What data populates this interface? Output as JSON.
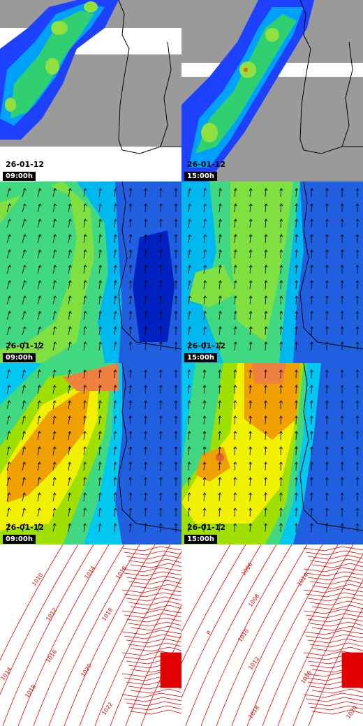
{
  "panels": [
    {
      "row": 0,
      "col": 0,
      "kind": "cloud",
      "date": "26-01-12",
      "hour": "09:00h"
    },
    {
      "row": 0,
      "col": 1,
      "kind": "cloud",
      "date": "26-01-12",
      "hour": "15:00h"
    },
    {
      "row": 1,
      "col": 0,
      "kind": "wind",
      "date": "26-01-12",
      "hour": "09:00h"
    },
    {
      "row": 1,
      "col": 1,
      "kind": "wind",
      "date": "26-01-12",
      "hour": "15:00h"
    },
    {
      "row": 2,
      "col": 0,
      "kind": "wave",
      "date": "26-01-12",
      "hour": "09:00h"
    },
    {
      "row": 2,
      "col": 1,
      "kind": "wave",
      "date": "26-01-12",
      "hour": "15:00h"
    },
    {
      "row": 3,
      "col": 0,
      "kind": "pressure"
    },
    {
      "row": 3,
      "col": 1,
      "kind": "pressure"
    }
  ],
  "pressure_labels_left": [
    "1010",
    "1012",
    "1014",
    "1016",
    "1018",
    "1020",
    "1022",
    "1014",
    "1016",
    "1018"
  ],
  "pressure_labels_right": [
    "1006",
    "1008",
    "1010",
    "1012",
    "1014",
    "1016",
    "1018",
    "1020",
    "P"
  ],
  "colors": {
    "land": "#9a9a9a",
    "coast": "#000000",
    "contour": "#e00000",
    "scale_blue": "#0000c8",
    "scale_cyan": "#00e0ff",
    "scale_green": "#40d040",
    "scale_yellow": "#f0f000",
    "scale_orange": "#f08000"
  }
}
